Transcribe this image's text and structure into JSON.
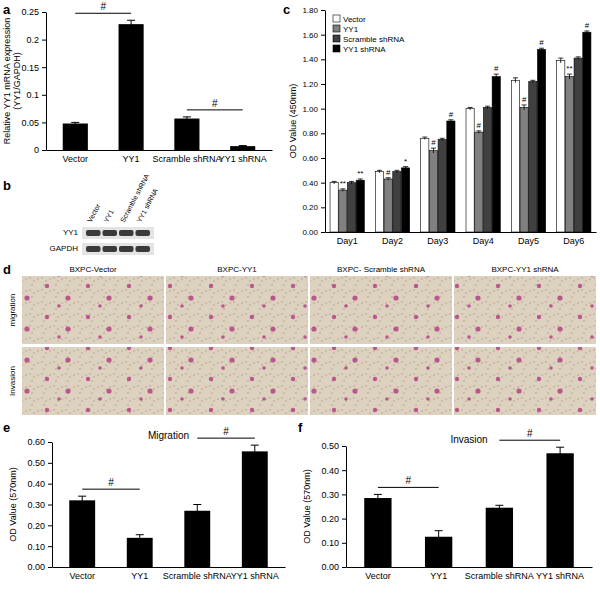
{
  "chart_data": [
    {
      "panel": "a",
      "type": "bar",
      "y_label": [
        "Relative YY1 mRNA expression",
        "(YY1/GAPDH)"
      ],
      "categories": [
        "Vector",
        "YY1",
        "Scramble shRNA",
        "YY1 shRNA"
      ],
      "values": [
        0.048,
        0.228,
        0.057,
        0.007
      ],
      "errors": [
        0.002,
        0.007,
        0.003,
        0.001
      ],
      "color": "#000000",
      "ylim": [
        0,
        0.25
      ],
      "yticks": [
        0,
        0.05,
        0.1,
        0.15,
        0.2,
        0.25
      ],
      "brackets": [
        {
          "categories": [
            "Vector",
            "YY1"
          ],
          "label": "#"
        },
        {
          "categories": [
            "Scramble shRNA",
            "YY1 shRNA"
          ],
          "label": "#"
        }
      ]
    },
    {
      "panel": "c",
      "type": "bar",
      "y_label": "OD Value (450nm)",
      "categories": [
        "Day1",
        "Day2",
        "Day3",
        "Day4",
        "Day5",
        "Day6"
      ],
      "series": [
        {
          "name": "Vector",
          "color": "#ffffff",
          "values": [
            0.4,
            0.49,
            0.76,
            1.0,
            1.23,
            1.39
          ],
          "errors": [
            0.01,
            0.01,
            0.01,
            0.01,
            0.02,
            0.02
          ]
        },
        {
          "name": "YY1",
          "color": "#808080",
          "values": [
            0.34,
            0.43,
            0.66,
            0.81,
            1.01,
            1.26
          ],
          "errors": [
            0.01,
            0.01,
            0.02,
            0.01,
            0.02,
            0.02
          ],
          "annotations": [
            "**",
            "#",
            "#",
            "#",
            "#",
            "**"
          ]
        },
        {
          "name": "Scramble shRNA",
          "color": "#404040",
          "values": [
            0.4,
            0.49,
            0.75,
            1.01,
            1.22,
            1.41
          ],
          "errors": [
            0.01,
            0.01,
            0.01,
            0.01,
            0.01,
            0.01
          ]
        },
        {
          "name": "YY1 shRNA",
          "color": "#000000",
          "values": [
            0.42,
            0.52,
            0.9,
            1.26,
            1.48,
            1.62
          ],
          "errors": [
            0.01,
            0.01,
            0.01,
            0.02,
            0.01,
            0.01
          ],
          "annotations": [
            "**",
            "*",
            "#",
            "#",
            "#",
            "#"
          ]
        }
      ],
      "ylim": [
        0,
        1.8
      ],
      "yticks": [
        {
          "value": 0,
          "label": "0.00"
        },
        {
          "value": 0.2,
          "label": "0.20"
        },
        {
          "value": 0.4,
          "label": "0.40"
        },
        {
          "value": 0.6,
          "label": "0.60"
        },
        {
          "value": 0.8,
          "label": "0.80"
        },
        {
          "value": 1,
          "label": "1.00"
        },
        {
          "value": 1.2,
          "label": "1.20"
        },
        {
          "value": 1.4,
          "label": "1.40"
        },
        {
          "value": 1.6,
          "label": "1.60"
        },
        {
          "value": 1.8,
          "label": "1.80"
        }
      ],
      "legend": "top-left"
    },
    {
      "panel": "e",
      "type": "bar",
      "title": "Migration",
      "y_label": "OD Value (570nm)",
      "categories": [
        "Vector",
        "YY1",
        "Scramble shRNA",
        "YY1 shRNA"
      ],
      "values": [
        0.32,
        0.14,
        0.27,
        0.555
      ],
      "errors": [
        0.02,
        0.015,
        0.03,
        0.03
      ],
      "color": "#000000",
      "ylim": [
        0,
        0.6
      ],
      "yticks": [
        {
          "value": 0,
          "label": "0.00"
        },
        {
          "value": 0.1,
          "label": "0.10"
        },
        {
          "value": 0.2,
          "label": "0.20"
        },
        {
          "value": 0.3,
          "label": "0.30"
        },
        {
          "value": 0.4,
          "label": "0.40"
        },
        {
          "value": 0.5,
          "label": "0.50"
        },
        {
          "value": 0.6,
          "label": "0.60"
        }
      ],
      "brackets": [
        {
          "categories": [
            "Vector",
            "YY1"
          ],
          "label": "#"
        },
        {
          "categories": [
            "Scramble shRNA",
            "YY1 shRNA"
          ],
          "label": "#"
        }
      ]
    },
    {
      "panel": "f",
      "type": "bar",
      "title": "Invasion",
      "y_label": "OD Value (570nm)",
      "categories": [
        "Vector",
        "YY1",
        "Scramble shRNA",
        "YY1 shRNA"
      ],
      "values": [
        0.285,
        0.125,
        0.245,
        0.47
      ],
      "errors": [
        0.015,
        0.025,
        0.01,
        0.025
      ],
      "color": "#000000",
      "ylim": [
        0,
        0.5
      ],
      "yticks": [
        {
          "value": 0,
          "label": "0.00"
        },
        {
          "value": 0.1,
          "label": "0.10"
        },
        {
          "value": 0.2,
          "label": "0.20"
        },
        {
          "value": 0.3,
          "label": "0.30"
        },
        {
          "value": 0.4,
          "label": "0.40"
        },
        {
          "value": 0.5,
          "label": "0.50"
        }
      ],
      "brackets": [
        {
          "categories": [
            "Vector",
            "YY1"
          ],
          "label": "#"
        },
        {
          "categories": [
            "Scramble shRNA",
            "YY1 shRNA"
          ],
          "label": "#"
        }
      ]
    }
  ],
  "blot": {
    "panel": "b",
    "lanes": [
      "Vector",
      "YY1",
      "Scramble shRNA",
      "YY1 shRNA"
    ],
    "rows": [
      "YY1",
      "GAPDH"
    ]
  },
  "micrographs": {
    "panel": "d",
    "columns": [
      "BXPC-Vector",
      "BXPC-YY1",
      "BXPC- Scramble shRNA",
      "BXPC-YY1 shRNA"
    ],
    "rows": [
      "migration",
      "Invasion"
    ]
  }
}
